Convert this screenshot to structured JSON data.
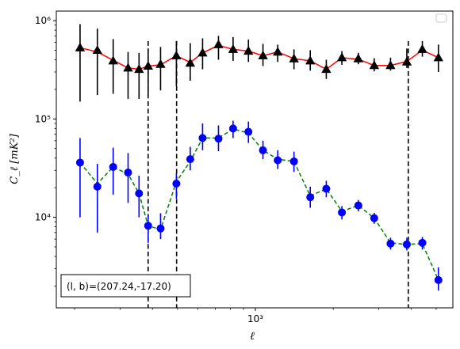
{
  "chart_data": {
    "type": "line",
    "xscale": "log",
    "yscale": "log",
    "xlim": [
      170,
      5800
    ],
    "ylim": [
      1200,
      1250000
    ],
    "xlabel": "ℓ",
    "ylabel": "C_ℓ [mK²]",
    "x_tick_labels": [
      {
        "value": 1000,
        "label": "10³"
      }
    ],
    "y_tick_labels": [
      {
        "value": 10000,
        "label": "10⁴"
      },
      {
        "value": 100000,
        "label": "10⁵"
      },
      {
        "value": 1000000,
        "label": "10⁶"
      }
    ],
    "legend": {
      "placement": "upper right",
      "entries": []
    },
    "annotation": "(l, b)=(207.24,-17.20)",
    "vlines": [
      {
        "x": 385,
        "y_top": 620000
      },
      {
        "x": 496,
        "y_top": 620000
      },
      {
        "x": 3900,
        "y_top": 620000
      }
    ],
    "series": [
      {
        "marker": "triangle",
        "color": "#000000",
        "fit_color": "#ff0000",
        "fit_style": "solid",
        "x": [
          210,
          245,
          282,
          322,
          355,
          385,
          430,
          495,
          560,
          625,
          720,
          820,
          940,
          1070,
          1220,
          1410,
          1630,
          1880,
          2160,
          2500,
          2880,
          3330,
          3850,
          4420,
          5100
        ],
        "y": [
          530000,
          500000,
          390000,
          330000,
          320000,
          345000,
          360000,
          440000,
          370000,
          470000,
          570000,
          510000,
          490000,
          440000,
          480000,
          410000,
          390000,
          320000,
          420000,
          410000,
          350000,
          350000,
          380000,
          510000,
          420000
        ],
        "err_low": [
          150000,
          175000,
          180000,
          160000,
          160000,
          175000,
          195000,
          215000,
          245000,
          320000,
          400000,
          390000,
          380000,
          345000,
          380000,
          320000,
          310000,
          255000,
          355000,
          360000,
          305000,
          310000,
          330000,
          430000,
          300000
        ],
        "err_high": [
          920000,
          830000,
          650000,
          480000,
          470000,
          520000,
          540000,
          620000,
          590000,
          660000,
          700000,
          680000,
          640000,
          580000,
          570000,
          510000,
          500000,
          400000,
          490000,
          470000,
          415000,
          420000,
          520000,
          620000,
          570000
        ],
        "fit_y": [
          530000,
          480000,
          395000,
          330000,
          320000,
          345000,
          355000,
          440000,
          375000,
          470000,
          560000,
          510000,
          490000,
          440000,
          480000,
          410000,
          390000,
          320000,
          420000,
          405000,
          350000,
          350000,
          385000,
          500000,
          420000
        ]
      },
      {
        "marker": "circle",
        "color": "#0000ff",
        "fit_color": "#008000",
        "fit_style": "dashed",
        "x": [
          210,
          245,
          282,
          322,
          355,
          385,
          430,
          495,
          560,
          625,
          720,
          820,
          940,
          1070,
          1220,
          1410,
          1630,
          1880,
          2160,
          2500,
          2880,
          3330,
          3850,
          4420,
          5100
        ],
        "y": [
          36000,
          20500,
          32500,
          28500,
          17500,
          8200,
          7700,
          22000,
          39000,
          64000,
          63000,
          80000,
          74000,
          48000,
          38000,
          37000,
          16000,
          19500,
          11200,
          13200,
          9800,
          5400,
          5300,
          5500,
          2300
        ],
        "err_low": [
          10000,
          7000,
          17000,
          14000,
          10000,
          5500,
          6000,
          15500,
          30000,
          48000,
          47000,
          64000,
          57000,
          39000,
          31000,
          29000,
          12500,
          16000,
          9500,
          11500,
          8600,
          4700,
          4600,
          4700,
          1800
        ],
        "err_high": [
          64000,
          35000,
          51000,
          45000,
          26500,
          10500,
          11000,
          28000,
          52000,
          90000,
          86000,
          96000,
          94000,
          60000,
          48000,
          46500,
          20500,
          23500,
          13000,
          15000,
          11100,
          6200,
          6200,
          6300,
          3100
        ],
        "fit_y": [
          36000,
          22000,
          32500,
          27500,
          17500,
          8200,
          7500,
          23000,
          37000,
          64000,
          64000,
          79000,
          72000,
          48000,
          39000,
          37000,
          16500,
          19500,
          11500,
          13200,
          9800,
          5500,
          5300,
          5400,
          2300
        ]
      }
    ]
  }
}
